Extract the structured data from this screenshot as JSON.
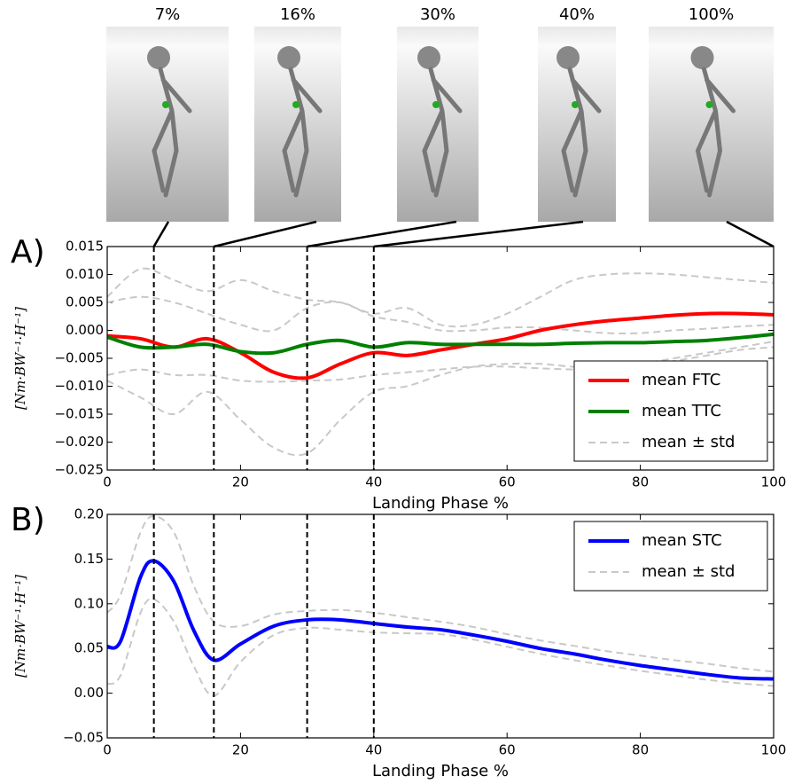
{
  "frames": [
    "7%",
    "16%",
    "30%",
    "40%",
    "100%"
  ],
  "chart_data": [
    {
      "type": "line",
      "panel": "A)",
      "ylabel": "[Nm·BW⁻¹·H⁻¹]",
      "xlabel": "Landing Phase %",
      "xlim": [
        0,
        100
      ],
      "xticks": [
        0,
        20,
        40,
        60,
        80,
        100
      ],
      "ylim": [
        -0.025,
        0.015
      ],
      "yticks": [
        {
          "value": -0.025,
          "label": "−0.025"
        },
        {
          "value": -0.02,
          "label": "−0.020"
        },
        {
          "value": -0.015,
          "label": "−0.015"
        },
        {
          "value": -0.01,
          "label": "−0.010"
        },
        {
          "value": -0.005,
          "label": "−0.005"
        },
        {
          "value": 0,
          "label": "0.000"
        },
        {
          "value": 0.005,
          "label": "0.005"
        },
        {
          "value": 0.01,
          "label": "0.010"
        },
        {
          "value": 0.015,
          "label": "0.015"
        }
      ],
      "vlines": [
        7,
        16,
        30,
        40
      ],
      "legend": "lower right",
      "x": [
        0,
        5,
        10,
        15,
        20,
        25,
        30,
        35,
        40,
        45,
        50,
        55,
        60,
        65,
        70,
        75,
        80,
        85,
        90,
        95,
        100
      ],
      "series": [
        {
          "name": "mean FTC",
          "color": "#ff0000",
          "values": [
            -0.001,
            -0.0015,
            -0.003,
            -0.0015,
            -0.004,
            -0.0075,
            -0.0085,
            -0.006,
            -0.004,
            -0.0045,
            -0.0035,
            -0.0025,
            -0.0015,
            0.0,
            0.001,
            0.0017,
            0.0022,
            0.0027,
            0.003,
            0.003,
            0.0028
          ],
          "upper": [
            0.006,
            0.011,
            0.009,
            0.007,
            0.009,
            0.007,
            0.0055,
            0.005,
            0.003,
            0.004,
            0.001,
            0.001,
            0.003,
            0.006,
            0.009,
            0.01,
            0.0102,
            0.01,
            0.0095,
            0.009,
            0.0085
          ],
          "lower": [
            -0.009,
            -0.012,
            -0.015,
            -0.011,
            -0.016,
            -0.021,
            -0.022,
            -0.016,
            -0.011,
            -0.01,
            -0.008,
            -0.0065,
            -0.006,
            -0.006,
            -0.0065,
            -0.0065,
            -0.006,
            -0.005,
            -0.004,
            -0.003,
            -0.002
          ]
        },
        {
          "name": "mean TTC",
          "color": "#008000",
          "values": [
            -0.0012,
            -0.003,
            -0.003,
            -0.0025,
            -0.0038,
            -0.004,
            -0.0025,
            -0.0018,
            -0.003,
            -0.0022,
            -0.0025,
            -0.0025,
            -0.0025,
            -0.0025,
            -0.0023,
            -0.0022,
            -0.0022,
            -0.002,
            -0.0018,
            -0.0013,
            -0.0007
          ],
          "upper": [
            0.005,
            0.006,
            0.005,
            0.003,
            0.001,
            0.0,
            0.004,
            0.005,
            0.0025,
            0.0015,
            0.0,
            0.0,
            0.0005,
            0.0005,
            0.0,
            -0.0005,
            -0.0005,
            0.0,
            0.0003,
            0.0007,
            0.001
          ],
          "lower": [
            -0.008,
            -0.007,
            -0.008,
            -0.008,
            -0.009,
            -0.0092,
            -0.009,
            -0.0088,
            -0.008,
            -0.0075,
            -0.007,
            -0.0065,
            -0.0065,
            -0.0068,
            -0.007,
            -0.007,
            -0.0065,
            -0.0055,
            -0.0045,
            -0.0035,
            -0.003
          ]
        }
      ],
      "std": {
        "name": "mean ± std",
        "color": "#c8c8c8"
      }
    },
    {
      "type": "line",
      "panel": "B)",
      "ylabel": "[Nm·BW⁻¹·H⁻¹]",
      "xlabel": "Landing Phase %",
      "xlim": [
        0,
        100
      ],
      "xticks": [
        0,
        20,
        40,
        60,
        80,
        100
      ],
      "ylim": [
        -0.05,
        0.2
      ],
      "yticks": [
        {
          "value": -0.05,
          "label": "−0.05"
        },
        {
          "value": 0,
          "label": "0.00"
        },
        {
          "value": 0.05,
          "label": "0.05"
        },
        {
          "value": 0.1,
          "label": "0.10"
        },
        {
          "value": 0.15,
          "label": "0.15"
        },
        {
          "value": 0.2,
          "label": "0.20"
        }
      ],
      "vlines": [
        7,
        16,
        30,
        40
      ],
      "legend": "upper right",
      "x": [
        0,
        2,
        5,
        7,
        10,
        13,
        16,
        20,
        25,
        30,
        35,
        40,
        45,
        50,
        55,
        60,
        65,
        70,
        75,
        80,
        85,
        90,
        95,
        100
      ],
      "series": [
        {
          "name": "mean STC",
          "color": "#0000ff",
          "values": [
            0.052,
            0.058,
            0.13,
            0.148,
            0.125,
            0.07,
            0.037,
            0.055,
            0.075,
            0.082,
            0.082,
            0.078,
            0.074,
            0.071,
            0.065,
            0.058,
            0.05,
            0.044,
            0.037,
            0.031,
            0.026,
            0.021,
            0.017,
            0.016
          ],
          "upper": [
            0.09,
            0.11,
            0.18,
            0.198,
            0.18,
            0.12,
            0.08,
            0.075,
            0.088,
            0.092,
            0.093,
            0.09,
            0.085,
            0.08,
            0.074,
            0.066,
            0.059,
            0.053,
            0.047,
            0.042,
            0.037,
            0.033,
            0.028,
            0.024
          ],
          "lower": [
            0.01,
            0.02,
            0.09,
            0.105,
            0.08,
            0.03,
            -0.003,
            0.035,
            0.065,
            0.073,
            0.071,
            0.068,
            0.067,
            0.066,
            0.06,
            0.052,
            0.044,
            0.037,
            0.031,
            0.025,
            0.02,
            0.015,
            0.011,
            0.008
          ]
        }
      ],
      "std": {
        "name": "mean ± std",
        "color": "#c8c8c8"
      }
    }
  ]
}
